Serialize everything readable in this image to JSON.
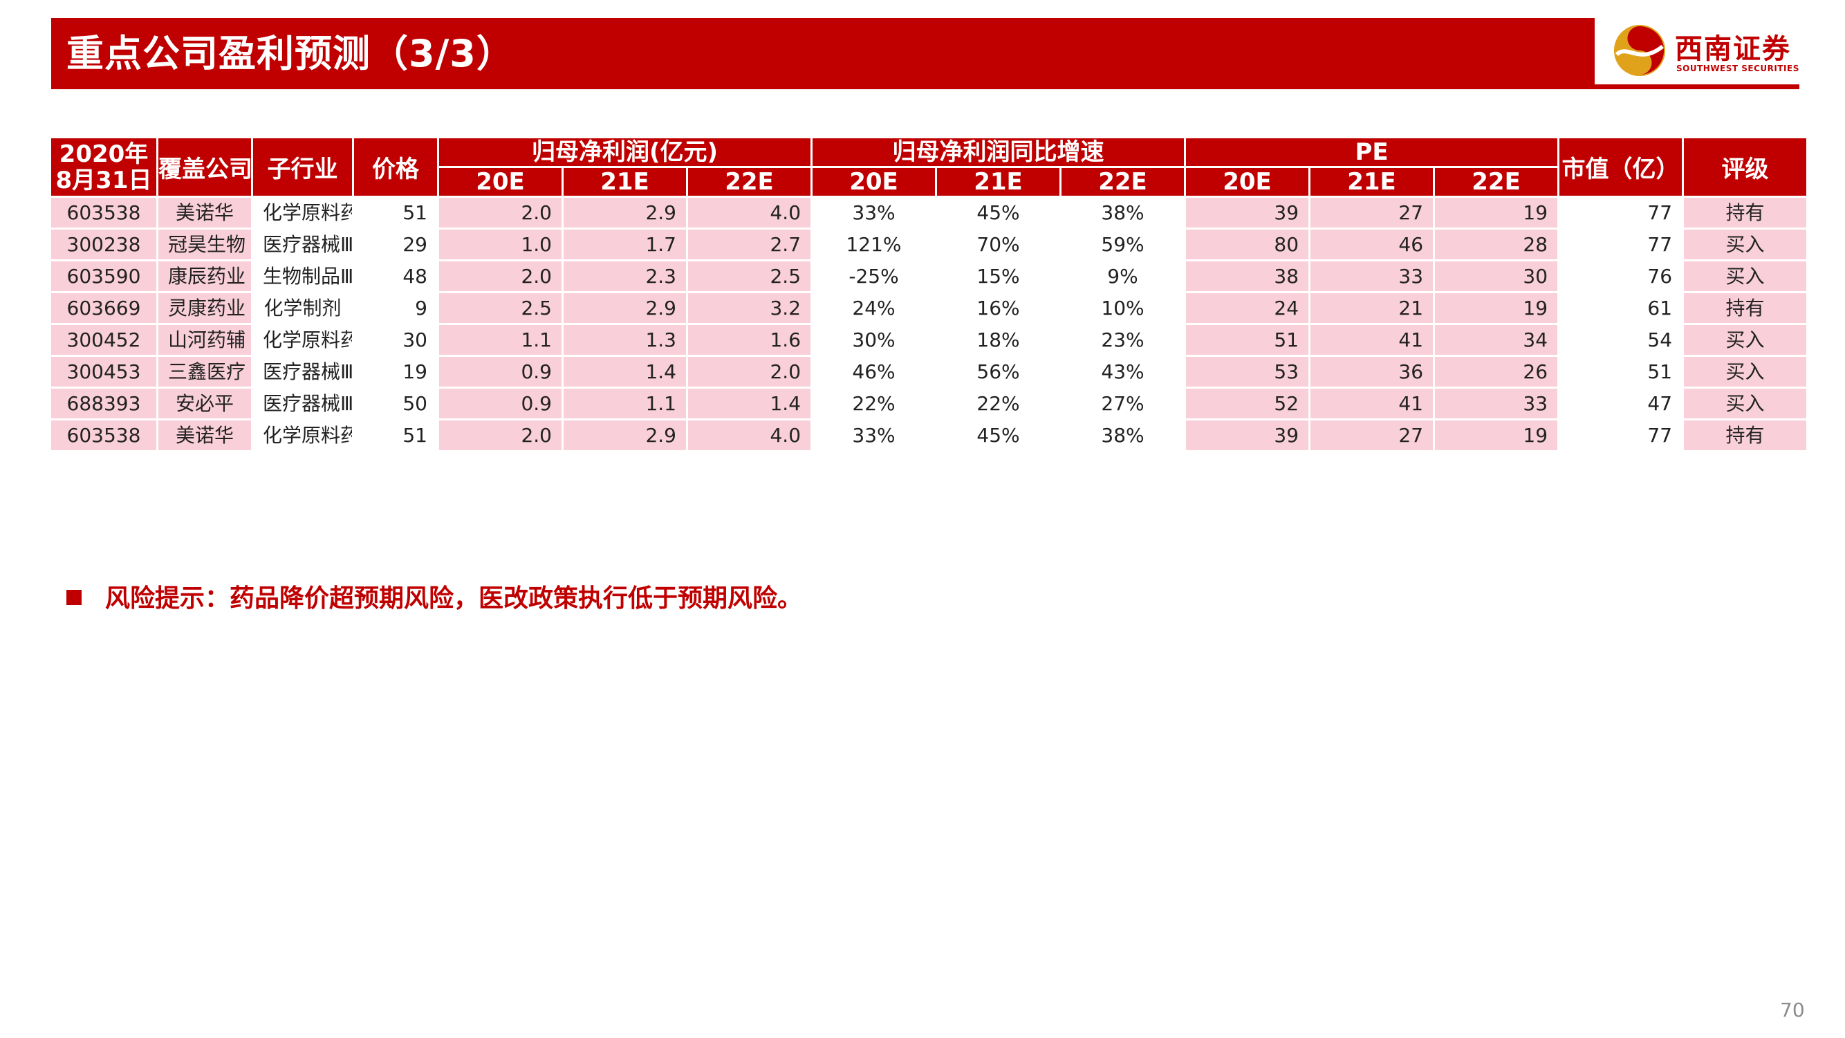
{
  "header": {
    "title": "重点公司盈利预测（3/3）"
  },
  "logo": {
    "name_cn": "西南证券",
    "name_en": "SOUTHWEST SECURITIES"
  },
  "table": {
    "headers": {
      "date_line1": "2020年",
      "date_line2": "8月31日",
      "company": "覆盖公司",
      "sub_industry": "子行业",
      "price": "价格",
      "profit_group": "归母净利润(亿元)",
      "growth_group": "归母净利润同比增速",
      "pe_group": "PE",
      "market_cap": "市值（亿）",
      "rating": "评级",
      "years": [
        "20E",
        "21E",
        "22E"
      ]
    },
    "rows": [
      {
        "code": "603538",
        "company": "美诺华",
        "sub": "化学原料药",
        "price": "51",
        "p20": "2.0",
        "p21": "2.9",
        "p22": "4.0",
        "g20": "33%",
        "g21": "45%",
        "g22": "38%",
        "pe20": "39",
        "pe21": "27",
        "pe22": "19",
        "cap": "77",
        "rating": "持有"
      },
      {
        "code": "300238",
        "company": "冠昊生物",
        "sub": "医疗器械Ⅲ",
        "price": "29",
        "p20": "1.0",
        "p21": "1.7",
        "p22": "2.7",
        "g20": "121%",
        "g21": "70%",
        "g22": "59%",
        "pe20": "80",
        "pe21": "46",
        "pe22": "28",
        "cap": "77",
        "rating": "买入"
      },
      {
        "code": "603590",
        "company": "康辰药业",
        "sub": "生物制品Ⅲ",
        "price": "48",
        "p20": "2.0",
        "p21": "2.3",
        "p22": "2.5",
        "g20": "-25%",
        "g21": "15%",
        "g22": "9%",
        "pe20": "38",
        "pe21": "33",
        "pe22": "30",
        "cap": "76",
        "rating": "买入"
      },
      {
        "code": "603669",
        "company": "灵康药业",
        "sub": "化学制剂",
        "price": "9",
        "p20": "2.5",
        "p21": "2.9",
        "p22": "3.2",
        "g20": "24%",
        "g21": "16%",
        "g22": "10%",
        "pe20": "24",
        "pe21": "21",
        "pe22": "19",
        "cap": "61",
        "rating": "持有"
      },
      {
        "code": "300452",
        "company": "山河药辅",
        "sub": "化学原料药",
        "price": "30",
        "p20": "1.1",
        "p21": "1.3",
        "p22": "1.6",
        "g20": "30%",
        "g21": "18%",
        "g22": "23%",
        "pe20": "51",
        "pe21": "41",
        "pe22": "34",
        "cap": "54",
        "rating": "买入"
      },
      {
        "code": "300453",
        "company": "三鑫医疗",
        "sub": "医疗器械Ⅲ",
        "price": "19",
        "p20": "0.9",
        "p21": "1.4",
        "p22": "2.0",
        "g20": "46%",
        "g21": "56%",
        "g22": "43%",
        "pe20": "53",
        "pe21": "36",
        "pe22": "26",
        "cap": "51",
        "rating": "买入"
      },
      {
        "code": "688393",
        "company": "安必平",
        "sub": "医疗器械Ⅲ",
        "price": "50",
        "p20": "0.9",
        "p21": "1.1",
        "p22": "1.4",
        "g20": "22%",
        "g21": "22%",
        "g22": "27%",
        "pe20": "52",
        "pe21": "41",
        "pe22": "33",
        "cap": "47",
        "rating": "买入"
      },
      {
        "code": "603538",
        "company": "美诺华",
        "sub": "化学原料药",
        "price": "51",
        "p20": "2.0",
        "p21": "2.9",
        "p22": "4.0",
        "g20": "33%",
        "g21": "45%",
        "g22": "38%",
        "pe20": "39",
        "pe21": "27",
        "pe22": "19",
        "cap": "77",
        "rating": "持有"
      }
    ]
  },
  "risk_note": "风险提示：药品降价超预期风险，医改政策执行低于预期风险。",
  "page_number": "70",
  "colors": {
    "brand_red": "#c00000",
    "row_pink": "#f9cfd9",
    "logo_gold": "#e0a21a"
  }
}
